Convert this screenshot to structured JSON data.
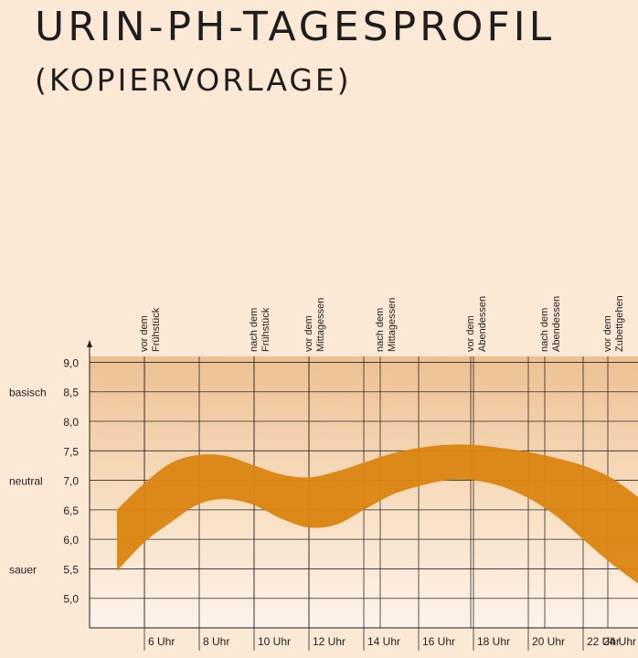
{
  "title": "URIN-PH-TAGESPROFIL",
  "subtitle": "(KOPIERVORLAGE)",
  "chart_data": {
    "type": "area",
    "ylim": [
      4.5,
      9.1
    ],
    "xlim": [
      4,
      24
    ],
    "y_ticks": [
      9.0,
      8.5,
      8.0,
      7.5,
      7.0,
      6.5,
      6.0,
      5.5,
      5.0
    ],
    "y_tick_labels": [
      "9,0",
      "8,5",
      "8,0",
      "7,5",
      "7,0",
      "6,5",
      "6,0",
      "5,5",
      "5,0"
    ],
    "x_ticks": [
      6,
      8,
      10,
      12,
      14,
      16,
      18,
      20,
      22,
      24
    ],
    "x_tick_labels": [
      "6 Uhr",
      "8 Uhr",
      "10 Uhr",
      "12 Uhr",
      "14 Uhr",
      "16 Uhr",
      "18 Uhr",
      "20 Uhr",
      "22 Uhr",
      "24 Uhr"
    ],
    "category_labels": [
      {
        "value": 8.5,
        "text": "basisch"
      },
      {
        "value": 7.0,
        "text": "neutral"
      },
      {
        "value": 5.5,
        "text": "sauer"
      }
    ],
    "events": [
      {
        "x": 6,
        "line1": "vor dem",
        "line2": "Frühstück"
      },
      {
        "x": 10,
        "line1": "nach dem",
        "line2": "Frühstück"
      },
      {
        "x": 12,
        "line1": "vor dem",
        "line2": "Mittagessen"
      },
      {
        "x": 14.6,
        "line1": "nach dem",
        "line2": "Mittagessen"
      },
      {
        "x": 17.9,
        "line1": "vor dem",
        "line2": "Abendessen"
      },
      {
        "x": 20.6,
        "line1": "nach dem",
        "line2": "Abendessen"
      },
      {
        "x": 22.9,
        "line1": "vor dem",
        "line2": "Zubettgehen"
      }
    ],
    "band": {
      "x": [
        5,
        6,
        7,
        8,
        9,
        10,
        11,
        12,
        13,
        14,
        15,
        16,
        17,
        18,
        19,
        20,
        21,
        22,
        23,
        24
      ],
      "upper": [
        6.5,
        6.95,
        7.3,
        7.43,
        7.41,
        7.25,
        7.1,
        7.05,
        7.15,
        7.3,
        7.45,
        7.55,
        7.6,
        7.6,
        7.55,
        7.48,
        7.38,
        7.25,
        7.05,
        6.72
      ],
      "lower": [
        5.46,
        5.95,
        6.3,
        6.6,
        6.68,
        6.58,
        6.35,
        6.2,
        6.25,
        6.5,
        6.75,
        6.9,
        7.0,
        7.0,
        6.9,
        6.7,
        6.4,
        6.0,
        5.6,
        5.25
      ]
    },
    "band_color": "#dc8513",
    "grid": true
  }
}
